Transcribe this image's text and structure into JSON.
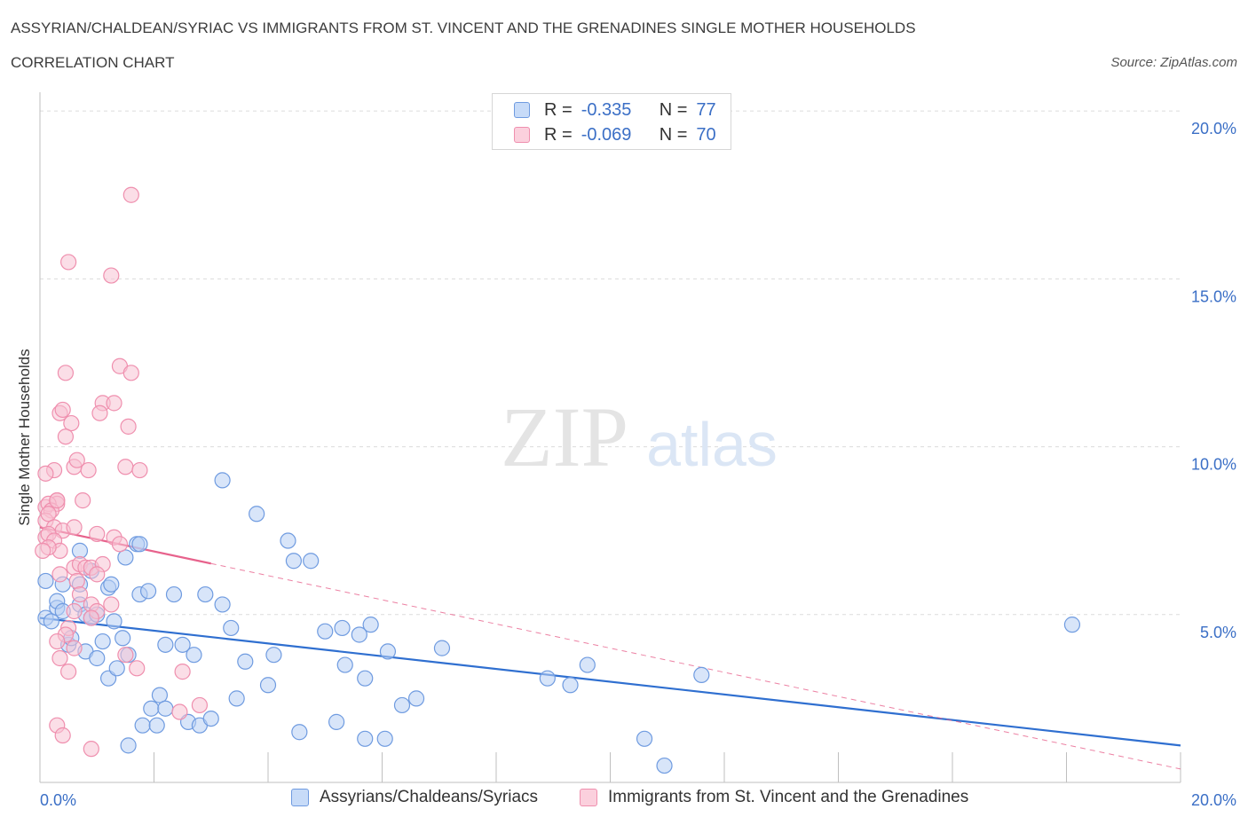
{
  "header": {
    "title_line1": "ASSYRIAN/CHALDEAN/SYRIAC VS IMMIGRANTS FROM ST. VINCENT AND THE GRENADINES SINGLE MOTHER HOUSEHOLDS",
    "title_line2": "CORRELATION CHART",
    "source": "Source: ZipAtlas.com"
  },
  "legend": {
    "r_label": "R =",
    "n_label": "N =",
    "series": [
      {
        "r": "-0.335",
        "n": "77"
      },
      {
        "r": "-0.069",
        "n": "70"
      }
    ]
  },
  "watermark": {
    "part1": "ZIP",
    "part2": "atlas"
  },
  "colors": {
    "blue_fill": "#b8d0f4",
    "blue_stroke": "#6f9be0",
    "blue_line": "#2f6fd0",
    "pink_fill": "#f8c3d3",
    "pink_stroke": "#ef8fae",
    "pink_line": "#e7628c",
    "axis_text": "#3b6fc6",
    "grid": "#dcdcdc"
  },
  "chart_data": {
    "type": "scatter",
    "title": "ASSYRIAN/CHALDEAN/SYRIAC VS IMMIGRANTS FROM ST. VINCENT AND THE GRENADINES SINGLE MOTHER HOUSEHOLDS CORRELATION CHART",
    "xlabel": "",
    "ylabel": "Single Mother Households",
    "xlim": [
      0,
      20
    ],
    "ylim": [
      0,
      20.4
    ],
    "x_tick_labels": [
      "0.0%",
      "20.0%"
    ],
    "y_ticks": [
      5,
      10,
      15,
      20
    ],
    "y_tick_labels": [
      "5.0%",
      "10.0%",
      "15.0%",
      "20.0%"
    ],
    "grid": true,
    "legend_position": "top-center",
    "series": [
      {
        "name": "Assyrians/Chaldeans/Syriacs",
        "color": "blue",
        "r": -0.335,
        "n": 77,
        "trend": {
          "x0": 0.0,
          "y0": 4.9,
          "x1": 20.0,
          "y1": 1.1,
          "solid_to": 20.0
        },
        "points": [
          [
            0.1,
            6.0
          ],
          [
            0.1,
            4.9
          ],
          [
            0.2,
            4.8
          ],
          [
            0.3,
            5.2
          ],
          [
            0.3,
            5.4
          ],
          [
            0.4,
            5.1
          ],
          [
            0.4,
            5.9
          ],
          [
            0.5,
            4.1
          ],
          [
            0.55,
            4.3
          ],
          [
            0.7,
            5.3
          ],
          [
            0.7,
            5.9
          ],
          [
            0.7,
            6.9
          ],
          [
            0.8,
            3.9
          ],
          [
            0.8,
            5.0
          ],
          [
            0.9,
            4.9
          ],
          [
            0.9,
            6.3
          ],
          [
            1.0,
            5.0
          ],
          [
            1.0,
            3.7
          ],
          [
            1.1,
            4.2
          ],
          [
            1.2,
            5.8
          ],
          [
            1.2,
            3.1
          ],
          [
            1.25,
            5.9
          ],
          [
            1.3,
            4.8
          ],
          [
            1.35,
            3.4
          ],
          [
            1.45,
            4.3
          ],
          [
            1.5,
            6.7
          ],
          [
            1.55,
            3.8
          ],
          [
            1.7,
            7.1
          ],
          [
            1.75,
            7.1
          ],
          [
            1.75,
            5.6
          ],
          [
            1.8,
            1.7
          ],
          [
            1.9,
            5.7
          ],
          [
            1.95,
            2.2
          ],
          [
            2.05,
            1.7
          ],
          [
            2.1,
            2.6
          ],
          [
            2.2,
            4.1
          ],
          [
            2.2,
            2.2
          ],
          [
            2.35,
            5.6
          ],
          [
            2.5,
            4.1
          ],
          [
            2.6,
            1.8
          ],
          [
            2.7,
            3.8
          ],
          [
            2.8,
            1.7
          ],
          [
            2.9,
            5.6
          ],
          [
            3.0,
            1.9
          ],
          [
            3.2,
            5.3
          ],
          [
            3.35,
            4.6
          ],
          [
            3.45,
            2.5
          ],
          [
            3.6,
            3.6
          ],
          [
            4.0,
            2.9
          ],
          [
            4.1,
            3.8
          ],
          [
            4.35,
            7.2
          ],
          [
            4.45,
            6.6
          ],
          [
            4.55,
            1.5
          ],
          [
            4.75,
            6.6
          ],
          [
            5.0,
            4.5
          ],
          [
            5.2,
            1.8
          ],
          [
            5.3,
            4.6
          ],
          [
            5.35,
            3.5
          ],
          [
            5.6,
            4.4
          ],
          [
            5.7,
            3.1
          ],
          [
            5.7,
            1.3
          ],
          [
            5.8,
            4.7
          ],
          [
            6.05,
            1.3
          ],
          [
            6.1,
            3.9
          ],
          [
            6.35,
            2.3
          ],
          [
            6.6,
            2.5
          ],
          [
            7.05,
            4.0
          ],
          [
            8.9,
            3.1
          ],
          [
            9.3,
            2.9
          ],
          [
            9.6,
            3.5
          ],
          [
            10.6,
            1.3
          ],
          [
            10.95,
            0.5
          ],
          [
            11.6,
            3.2
          ],
          [
            18.1,
            4.7
          ],
          [
            3.2,
            9.0
          ],
          [
            3.8,
            8.0
          ],
          [
            1.55,
            1.1
          ]
        ]
      },
      {
        "name": "Immigrants from St. Vincent and the Grenadines",
        "color": "pink",
        "r": -0.069,
        "n": 70,
        "trend": {
          "x0": 0.0,
          "y0": 7.6,
          "x1": 20.0,
          "y1": 0.4,
          "solid_to": 3.0
        },
        "points": [
          [
            1.6,
            17.5
          ],
          [
            0.5,
            15.5
          ],
          [
            1.25,
            15.1
          ],
          [
            0.45,
            12.2
          ],
          [
            1.4,
            12.4
          ],
          [
            1.6,
            12.2
          ],
          [
            0.35,
            11.0
          ],
          [
            0.4,
            11.1
          ],
          [
            1.1,
            11.3
          ],
          [
            1.3,
            11.3
          ],
          [
            1.05,
            11.0
          ],
          [
            0.55,
            10.7
          ],
          [
            1.55,
            10.6
          ],
          [
            0.45,
            10.3
          ],
          [
            0.6,
            9.4
          ],
          [
            0.65,
            9.6
          ],
          [
            0.25,
            9.3
          ],
          [
            0.1,
            9.2
          ],
          [
            0.85,
            9.3
          ],
          [
            1.5,
            9.4
          ],
          [
            1.75,
            9.3
          ],
          [
            0.3,
            8.4
          ],
          [
            0.3,
            8.3
          ],
          [
            0.1,
            8.2
          ],
          [
            0.15,
            8.3
          ],
          [
            0.2,
            8.1
          ],
          [
            0.3,
            8.4
          ],
          [
            0.75,
            8.4
          ],
          [
            0.1,
            7.8
          ],
          [
            0.15,
            8.0
          ],
          [
            0.25,
            7.6
          ],
          [
            0.4,
            7.5
          ],
          [
            0.6,
            7.6
          ],
          [
            0.1,
            7.3
          ],
          [
            0.15,
            7.4
          ],
          [
            0.25,
            7.2
          ],
          [
            0.35,
            6.9
          ],
          [
            0.15,
            7.0
          ],
          [
            0.05,
            6.9
          ],
          [
            1.0,
            7.4
          ],
          [
            1.3,
            7.3
          ],
          [
            1.4,
            7.1
          ],
          [
            0.6,
            6.4
          ],
          [
            0.7,
            6.5
          ],
          [
            0.8,
            6.4
          ],
          [
            0.9,
            6.4
          ],
          [
            1.1,
            6.5
          ],
          [
            0.35,
            6.2
          ],
          [
            0.65,
            6.0
          ],
          [
            1.0,
            6.2
          ],
          [
            0.7,
            5.6
          ],
          [
            0.9,
            5.3
          ],
          [
            1.0,
            5.1
          ],
          [
            0.6,
            5.1
          ],
          [
            1.25,
            5.3
          ],
          [
            0.9,
            4.9
          ],
          [
            0.5,
            4.6
          ],
          [
            0.45,
            4.4
          ],
          [
            0.3,
            4.2
          ],
          [
            0.6,
            4.0
          ],
          [
            0.35,
            3.7
          ],
          [
            0.5,
            3.3
          ],
          [
            1.5,
            3.8
          ],
          [
            1.7,
            3.4
          ],
          [
            2.5,
            3.3
          ],
          [
            2.45,
            2.1
          ],
          [
            2.8,
            2.3
          ],
          [
            0.3,
            1.7
          ],
          [
            0.4,
            1.4
          ],
          [
            0.9,
            1.0
          ]
        ]
      }
    ]
  },
  "bottom_legend": {
    "items": [
      "Assyrians/Chaldeans/Syriacs",
      "Immigrants from St. Vincent and the Grenadines"
    ]
  }
}
